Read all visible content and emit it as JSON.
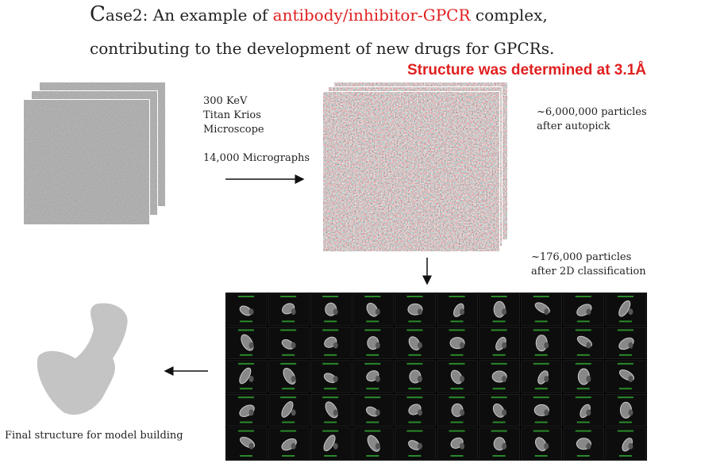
{
  "title": {
    "initial": "C",
    "text_1": "ase2: An example of ",
    "highlight": "antibody/inhibitor-GPCR",
    "text_2": " complex,",
    "line_2": "contributing to the development of new drugs for GPCRs."
  },
  "result": "Structure was determined at 3.1Å",
  "microscope": {
    "lines": [
      "300 KeV",
      "Titan Krios",
      "Microscope"
    ],
    "micrographs": "14,000 Micrographs"
  },
  "autopick": {
    "lines": [
      "~6,000,000 particles",
      "after autopick"
    ]
  },
  "classification": {
    "lines": [
      "~176,000 particles",
      "after 2D classification"
    ]
  },
  "caption": "Final structure for model building"
}
